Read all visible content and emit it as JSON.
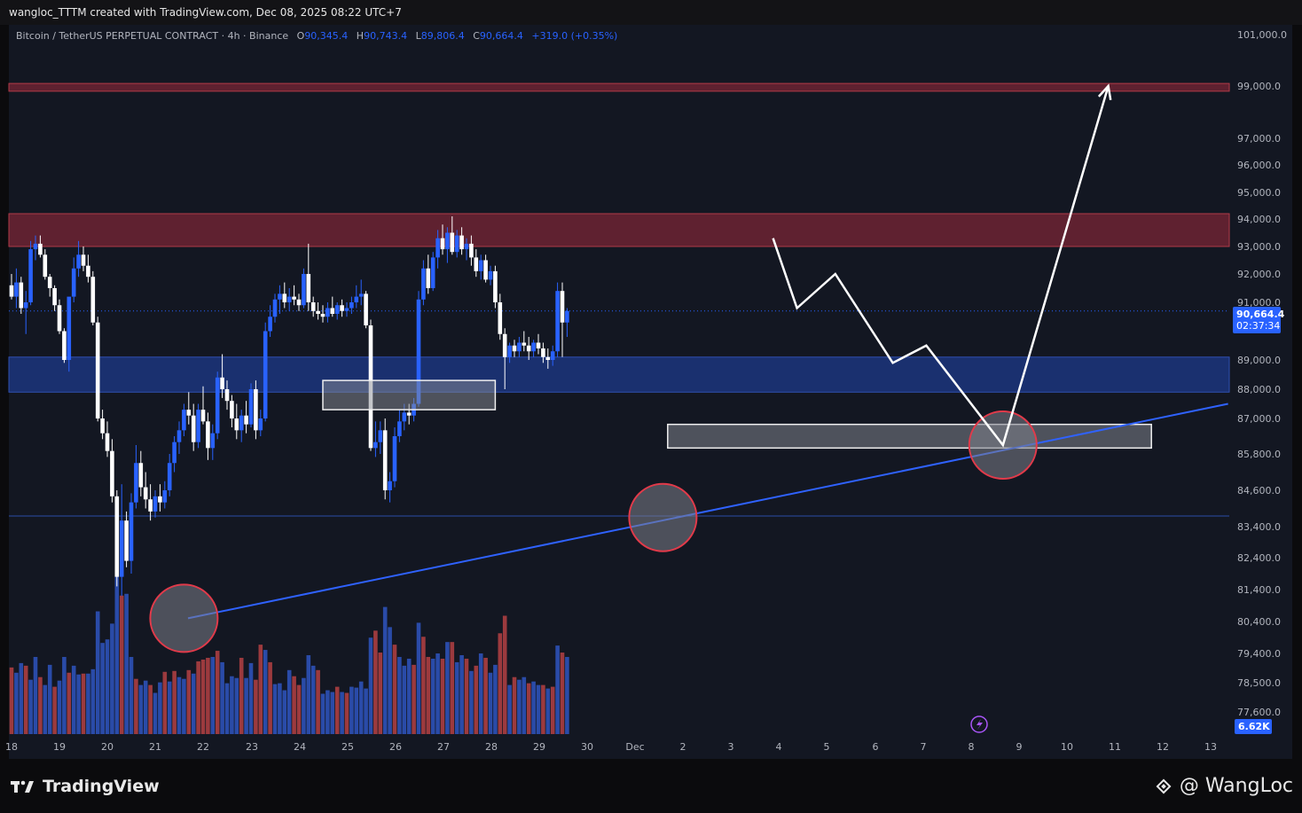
{
  "header": {
    "creator": "wangloc_TTTM created with TradingView.com, Dec 08, 2025 08:22 UTC+7",
    "symbol": "Bitcoin / TetherUS PERPETUAL CONTRACT · 4h · Binance",
    "ohlc": [
      {
        "key": "O",
        "value": "90,345.4"
      },
      {
        "key": "H",
        "value": "90,743.4"
      },
      {
        "key": "L",
        "value": "89,806.4"
      },
      {
        "key": "C",
        "value": "90,664.4"
      }
    ],
    "change": "+319.0 (+0.35%)"
  },
  "price_badge": {
    "price": "90,664.4",
    "countdown": "02:37:34"
  },
  "volume_badge": "6.62K",
  "footer": {
    "logo": "TradingView",
    "watermark": "@ WangLoc"
  },
  "colors": {
    "up": "#2962ff",
    "down": "#ffffff",
    "vol_up": "#2a4ba8",
    "vol_down": "#9c3a3e",
    "resistance": "#7a2535",
    "support": "#1e3a8a"
  },
  "chart_data": {
    "type": "candlestick",
    "title": "Bitcoin / TetherUS PERPETUAL CONTRACT · 4h · Binance",
    "ylim": [
      77000,
      101800
    ],
    "y_ticks": [
      "101,000.0",
      "99,000.0",
      "97,000.0",
      "96,000.0",
      "95,000.0",
      "94,000.0",
      "93,000.0",
      "92,000.0",
      "91,000.0",
      "89,000.0",
      "88,000.0",
      "87,000.0",
      "85,800.0",
      "84,600.0",
      "83,400.0",
      "82,400.0",
      "81,400.0",
      "80,400.0",
      "79,400.0",
      "78,500.0",
      "77,600.0"
    ],
    "x_ticks": [
      "18",
      "19",
      "20",
      "21",
      "22",
      "23",
      "24",
      "25",
      "26",
      "27",
      "28",
      "29",
      "30",
      "Dec",
      "2",
      "3",
      "4",
      "5",
      "6",
      "7",
      "8",
      "9",
      "10",
      "11",
      "12",
      "13"
    ],
    "candles": [
      [
        91600,
        92000,
        91100,
        91200
      ],
      [
        91200,
        92200,
        90800,
        91700
      ],
      [
        91700,
        91900,
        90600,
        90800
      ],
      [
        90800,
        91400,
        89900,
        91000
      ],
      [
        91000,
        93200,
        90900,
        92900
      ],
      [
        92900,
        93400,
        92500,
        93100
      ],
      [
        93100,
        93400,
        92600,
        92700
      ],
      [
        92700,
        92900,
        91800,
        91900
      ],
      [
        91900,
        92000,
        91200,
        91500
      ],
      [
        91500,
        91600,
        90700,
        90900
      ],
      [
        90900,
        91100,
        89900,
        90000
      ],
      [
        90000,
        90100,
        88900,
        89000
      ],
      [
        89000,
        91000,
        88600,
        91200
      ],
      [
        91200,
        92600,
        91000,
        92200
      ],
      [
        92200,
        93200,
        91900,
        92700
      ],
      [
        92700,
        93000,
        92100,
        92300
      ],
      [
        92300,
        92700,
        91700,
        91900
      ],
      [
        91900,
        92100,
        90200,
        90300
      ],
      [
        90300,
        90500,
        86900,
        87000
      ],
      [
        87000,
        87300,
        86300,
        86500
      ],
      [
        86500,
        86900,
        85700,
        85900
      ],
      [
        85900,
        86300,
        84200,
        84400
      ],
      [
        84400,
        84600,
        81500,
        81800
      ],
      [
        81800,
        84800,
        81200,
        83600
      ],
      [
        83600,
        83900,
        82100,
        82300
      ],
      [
        82300,
        84500,
        81900,
        84200
      ],
      [
        84200,
        86100,
        84000,
        85500
      ],
      [
        85500,
        85900,
        84400,
        84700
      ],
      [
        84700,
        85200,
        84000,
        84300
      ],
      [
        84300,
        84800,
        83600,
        83900
      ],
      [
        83900,
        84600,
        83700,
        84400
      ],
      [
        84400,
        84800,
        83900,
        84200
      ],
      [
        84200,
        84900,
        84000,
        84600
      ],
      [
        84600,
        85800,
        84400,
        85500
      ],
      [
        85500,
        86400,
        85200,
        86200
      ],
      [
        86200,
        86900,
        85800,
        86600
      ],
      [
        86600,
        87500,
        86400,
        87300
      ],
      [
        87300,
        87900,
        86800,
        87100
      ],
      [
        87100,
        87500,
        85900,
        86200
      ],
      [
        86200,
        87500,
        86000,
        87300
      ],
      [
        87300,
        88100,
        86800,
        86900
      ],
      [
        86900,
        87200,
        85600,
        86000
      ],
      [
        86000,
        86800,
        85600,
        86500
      ],
      [
        86500,
        88600,
        86300,
        88400
      ],
      [
        88400,
        89200,
        87700,
        88000
      ],
      [
        88000,
        88300,
        87300,
        87600
      ],
      [
        87600,
        87800,
        86700,
        87000
      ],
      [
        87000,
        87500,
        86300,
        86600
      ],
      [
        86600,
        87300,
        86200,
        87100
      ],
      [
        87100,
        87600,
        86500,
        86800
      ],
      [
        86800,
        88200,
        86700,
        88000
      ],
      [
        88000,
        88300,
        86300,
        86600
      ],
      [
        86600,
        87300,
        86400,
        87000
      ],
      [
        87000,
        90300,
        86900,
        90000
      ],
      [
        90000,
        90900,
        89800,
        90500
      ],
      [
        90500,
        91300,
        90300,
        91100
      ],
      [
        91100,
        91600,
        90600,
        91300
      ],
      [
        91300,
        91700,
        90800,
        91000
      ],
      [
        91000,
        91500,
        90700,
        91200
      ],
      [
        91200,
        91600,
        90900,
        91100
      ],
      [
        91100,
        91300,
        90700,
        90900
      ],
      [
        90900,
        92200,
        90800,
        92000
      ],
      [
        92000,
        93100,
        90700,
        91000
      ],
      [
        91000,
        91200,
        90500,
        90700
      ],
      [
        90700,
        91000,
        90400,
        90600
      ],
      [
        90600,
        90900,
        90300,
        90500
      ],
      [
        90500,
        91000,
        90300,
        90800
      ],
      [
        90800,
        91200,
        90500,
        90600
      ],
      [
        90600,
        91000,
        90400,
        90900
      ],
      [
        90900,
        91100,
        90500,
        90700
      ],
      [
        90700,
        91000,
        90500,
        90800
      ],
      [
        90800,
        91200,
        90600,
        91000
      ],
      [
        91000,
        91600,
        90800,
        91200
      ],
      [
        91200,
        91800,
        90900,
        91300
      ],
      [
        91300,
        91400,
        90100,
        90200
      ],
      [
        90200,
        90400,
        85900,
        86000
      ],
      [
        86000,
        86900,
        85700,
        86200
      ],
      [
        86200,
        86900,
        85800,
        86600
      ],
      [
        86600,
        87000,
        84300,
        84600
      ],
      [
        84600,
        85200,
        84200,
        84900
      ],
      [
        84900,
        86700,
        84700,
        86400
      ],
      [
        86400,
        87300,
        86200,
        86900
      ],
      [
        86900,
        87500,
        86600,
        87200
      ],
      [
        87200,
        87500,
        86800,
        87100
      ],
      [
        87100,
        87700,
        86900,
        87500
      ],
      [
        87500,
        91400,
        87400,
        91100
      ],
      [
        91100,
        92500,
        90900,
        92200
      ],
      [
        92200,
        92700,
        91300,
        91500
      ],
      [
        91500,
        92800,
        91400,
        92600
      ],
      [
        92600,
        93600,
        92200,
        93300
      ],
      [
        93300,
        93800,
        92700,
        92900
      ],
      [
        92900,
        93700,
        92400,
        93500
      ],
      [
        93500,
        94100,
        92700,
        92800
      ],
      [
        92800,
        93600,
        92600,
        93400
      ],
      [
        93400,
        93700,
        92700,
        92900
      ],
      [
        92900,
        93300,
        92500,
        93100
      ],
      [
        93100,
        93400,
        92300,
        92600
      ],
      [
        92600,
        92900,
        91900,
        92100
      ],
      [
        92100,
        92700,
        91800,
        92500
      ],
      [
        92500,
        92700,
        91700,
        91800
      ],
      [
        91800,
        92300,
        91600,
        92100
      ],
      [
        92100,
        92300,
        90800,
        91000
      ],
      [
        91000,
        91300,
        89700,
        89900
      ],
      [
        89900,
        90100,
        88000,
        89100
      ],
      [
        89100,
        89600,
        88900,
        89500
      ],
      [
        89500,
        89700,
        89100,
        89300
      ],
      [
        89300,
        89800,
        89100,
        89600
      ],
      [
        89600,
        90000,
        89300,
        89500
      ],
      [
        89500,
        89800,
        89000,
        89300
      ],
      [
        89300,
        89700,
        89100,
        89600
      ],
      [
        89600,
        89900,
        89200,
        89400
      ],
      [
        89400,
        89600,
        88900,
        89100
      ],
      [
        89100,
        89400,
        88700,
        89000
      ],
      [
        89000,
        89500,
        88800,
        89300
      ],
      [
        89300,
        91700,
        89100,
        91400
      ],
      [
        91400,
        91700,
        89100,
        90300
      ],
      [
        90300,
        90800,
        89800,
        90700
      ]
    ],
    "volume": [
      [
        760,
        0
      ],
      [
        700,
        1
      ],
      [
        810,
        1
      ],
      [
        780,
        0
      ],
      [
        620,
        1
      ],
      [
        880,
        1
      ],
      [
        650,
        0
      ],
      [
        560,
        1
      ],
      [
        790,
        1
      ],
      [
        540,
        0
      ],
      [
        610,
        1
      ],
      [
        880,
        1
      ],
      [
        700,
        0
      ],
      [
        780,
        1
      ],
      [
        680,
        1
      ],
      [
        690,
        0
      ],
      [
        690,
        1
      ],
      [
        740,
        1
      ],
      [
        1400,
        1
      ],
      [
        1040,
        1
      ],
      [
        1080,
        1
      ],
      [
        1260,
        1
      ],
      [
        1800,
        1
      ],
      [
        1580,
        0
      ],
      [
        1600,
        1
      ],
      [
        880,
        1
      ],
      [
        630,
        0
      ],
      [
        560,
        1
      ],
      [
        610,
        1
      ],
      [
        560,
        0
      ],
      [
        470,
        1
      ],
      [
        590,
        1
      ],
      [
        710,
        0
      ],
      [
        600,
        1
      ],
      [
        720,
        0
      ],
      [
        650,
        1
      ],
      [
        630,
        1
      ],
      [
        730,
        0
      ],
      [
        690,
        1
      ],
      [
        830,
        0
      ],
      [
        850,
        0
      ],
      [
        870,
        0
      ],
      [
        880,
        1
      ],
      [
        950,
        0
      ],
      [
        820,
        1
      ],
      [
        580,
        1
      ],
      [
        660,
        1
      ],
      [
        640,
        1
      ],
      [
        870,
        0
      ],
      [
        640,
        1
      ],
      [
        810,
        1
      ],
      [
        620,
        0
      ],
      [
        1020,
        0
      ],
      [
        960,
        1
      ],
      [
        820,
        0
      ],
      [
        570,
        1
      ],
      [
        580,
        1
      ],
      [
        500,
        1
      ],
      [
        730,
        1
      ],
      [
        660,
        0
      ],
      [
        560,
        0
      ],
      [
        640,
        1
      ],
      [
        900,
        1
      ],
      [
        780,
        1
      ],
      [
        730,
        0
      ],
      [
        460,
        1
      ],
      [
        500,
        1
      ],
      [
        480,
        1
      ],
      [
        540,
        0
      ],
      [
        480,
        1
      ],
      [
        470,
        0
      ],
      [
        540,
        1
      ],
      [
        530,
        1
      ],
      [
        600,
        1
      ],
      [
        520,
        1
      ],
      [
        1100,
        1
      ],
      [
        1180,
        0
      ],
      [
        930,
        0
      ],
      [
        1450,
        1
      ],
      [
        1220,
        1
      ],
      [
        1020,
        0
      ],
      [
        880,
        1
      ],
      [
        780,
        1
      ],
      [
        860,
        1
      ],
      [
        790,
        0
      ],
      [
        1270,
        1
      ],
      [
        1110,
        0
      ],
      [
        880,
        0
      ],
      [
        860,
        1
      ],
      [
        920,
        1
      ],
      [
        860,
        0
      ],
      [
        1050,
        1
      ],
      [
        1050,
        0
      ],
      [
        820,
        1
      ],
      [
        900,
        1
      ],
      [
        860,
        0
      ],
      [
        720,
        1
      ],
      [
        780,
        0
      ],
      [
        920,
        1
      ],
      [
        870,
        0
      ],
      [
        700,
        1
      ],
      [
        790,
        1
      ],
      [
        1150,
        0
      ],
      [
        1350,
        0
      ],
      [
        560,
        1
      ],
      [
        650,
        0
      ],
      [
        620,
        1
      ],
      [
        650,
        1
      ],
      [
        580,
        0
      ],
      [
        600,
        1
      ],
      [
        560,
        1
      ],
      [
        560,
        0
      ],
      [
        520,
        1
      ],
      [
        540,
        0
      ],
      [
        1010,
        1
      ],
      [
        930,
        0
      ],
      [
        880,
        1
      ]
    ],
    "volume_max": 1800,
    "resistance_zones": [
      [
        98800,
        99100
      ],
      [
        93000,
        94200
      ]
    ],
    "support_zone": [
      87900,
      89100
    ],
    "gray_boxes": [
      {
        "from_candle": 65,
        "to_candle": 101,
        "low": 87300,
        "high": 88300
      },
      {
        "from_candle": 137,
        "to_candle": 238,
        "low": 86000,
        "high": 86800
      }
    ],
    "horizontal_line": 83750,
    "trendline": [
      [
        0,
        80500
      ],
      [
        0.999,
        87500
      ]
    ],
    "circles": [
      [
        36,
        80500
      ],
      [
        136,
        83700
      ],
      [
        207,
        86100
      ]
    ],
    "projection": [
      [
        159,
        93300
      ],
      [
        164,
        90800
      ],
      [
        172,
        92000
      ],
      [
        184,
        88900
      ],
      [
        191,
        89500
      ],
      [
        207,
        86100
      ],
      [
        229,
        99000
      ]
    ]
  }
}
